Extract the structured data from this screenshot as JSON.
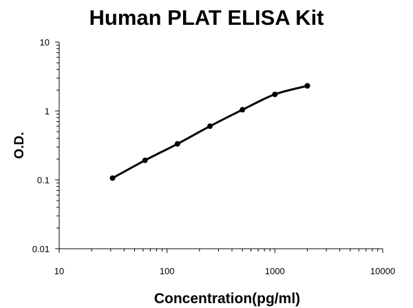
{
  "chart_data": {
    "type": "scatter",
    "title": "Human PLAT ELISA Kit",
    "xlabel": "Concentration(pg/ml)",
    "ylabel": "O.D.",
    "x_scale": "log",
    "y_scale": "log",
    "xlim": [
      10,
      10000
    ],
    "ylim": [
      0.01,
      10
    ],
    "x_ticks": [
      "10",
      "100",
      "1000",
      "10000"
    ],
    "y_ticks": [
      "0.01",
      "0.1",
      "1",
      "10"
    ],
    "grid": false,
    "legend": "none",
    "smooth_line": true,
    "colors": {
      "series": "#000000",
      "axis": "#000000"
    },
    "series": [
      {
        "x": [
          31.25,
          62.5,
          125,
          250,
          500,
          1000,
          2000,
          2000
        ],
        "y": [
          0.106,
          0.192,
          0.333,
          0.6,
          1.04,
          1.74,
          2.31,
          2.31
        ]
      }
    ]
  }
}
